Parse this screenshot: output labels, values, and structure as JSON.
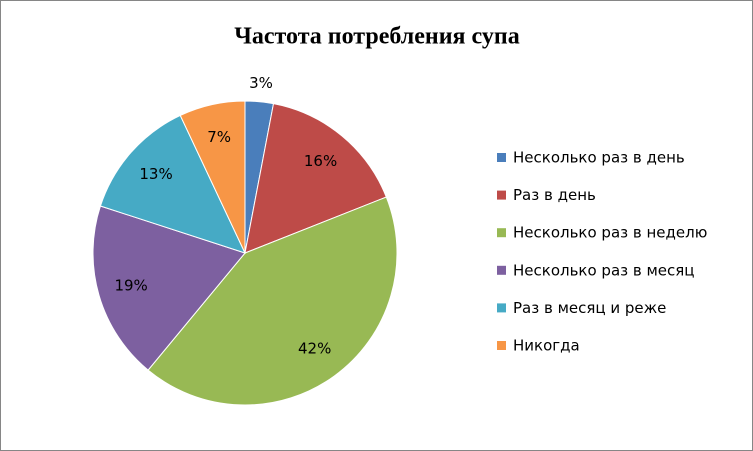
{
  "chart_data": {
    "type": "pie",
    "title": "Частота потребления супа",
    "categories": [
      "Несколько раз в день",
      "Раз в день",
      "Несколько раз в неделю",
      "Несколько раз в месяц",
      "Раз в месяц и реже",
      "Никогда"
    ],
    "values": [
      3,
      16,
      42,
      19,
      13,
      7
    ],
    "value_labels": [
      "3%",
      "16%",
      "42%",
      "19%",
      "13%",
      "7%"
    ],
    "colors": [
      "#4a7ebb",
      "#be4b48",
      "#98b954",
      "#7d60a0",
      "#46aac5",
      "#f79646"
    ],
    "legend": "right"
  }
}
